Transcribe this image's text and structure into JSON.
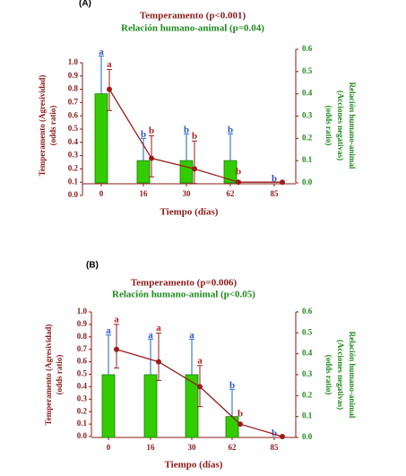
{
  "chart_data": [
    {
      "type": "bar_line",
      "panel_label": "(A)",
      "title": "Temperamento (p<0.001)",
      "subtitle": "Relación humano-animal (p=0.04)",
      "title_color": "#8b1a1a",
      "subtitle_color": "#1f8a1f",
      "xlabel": "Tiempo (días)",
      "ylabel": [
        "Temperamento (Agresividad)",
        "(odds ratio)"
      ],
      "y2label": [
        "Relación humano-animal",
        "(Acciones negativas)",
        "(odds ratio)"
      ],
      "categories": [
        "0",
        "16",
        "30",
        "62",
        "85"
      ],
      "ylim": [
        0,
        1
      ],
      "yticks": [
        {
          "value": 1,
          "label": "1.0"
        },
        0.9,
        0.8,
        0.7,
        0.6,
        0.5,
        0.4,
        0.3,
        0.2,
        0.1,
        {
          "value": 0,
          "label": "0.0"
        }
      ],
      "y2lim": [
        0,
        0.6
      ],
      "y2ticks": [
        0.6,
        0.5,
        0.4,
        0.3,
        0.2,
        0.1,
        {
          "value": 0,
          "label": "0.0"
        }
      ],
      "series": [
        {
          "mark": "bar",
          "axis": "y2",
          "color": "#33cc00",
          "values": [
            0.4,
            0.1,
            0.1,
            0.1,
            0
          ],
          "upper": [
            0.57,
            0.2,
            0.22,
            0.22,
            null
          ],
          "letters": [
            "a",
            "b",
            "b",
            "b",
            "b"
          ],
          "letter_color": "#3355cc"
        },
        {
          "mark": "line",
          "axis": "y",
          "color": "#9b1c1c",
          "values": [
            0.8,
            0.28,
            0.2,
            0.1,
            0.1
          ],
          "upper": [
            0.95,
            0.45,
            0.41,
            null,
            null
          ],
          "lower": [
            0.64,
            0.14,
            0.09,
            null,
            null
          ],
          "letters": [
            "a",
            "b",
            "b",
            "b",
            null
          ],
          "letter_color": "#b22222"
        }
      ]
    },
    {
      "type": "bar_line",
      "panel_label": "(B)",
      "title": "Temperamento  (p=0.006)",
      "subtitle": "Relación humano-animal (p<0.05)",
      "title_color": "#8b1a1a",
      "subtitle_color": "#1f8a1f",
      "xlabel": "Tiempo (días)",
      "ylabel": [
        "Temperamento (Agresividad)",
        "(odds ratio)"
      ],
      "y2label": [
        "Relación humano-animal",
        "(Acciones negativas)",
        "(odds ratio)"
      ],
      "categories": [
        "0",
        "16",
        "30",
        "62",
        "85"
      ],
      "ylim": [
        0,
        1
      ],
      "yticks": [
        {
          "value": 1,
          "label": "1.0"
        },
        0.9,
        0.8,
        0.7,
        0.6,
        0.5,
        0.4,
        0.3,
        0.2,
        0.1,
        {
          "value": 0,
          "label": "0.0"
        }
      ],
      "y2lim": [
        0,
        0.6
      ],
      "y2ticks": [
        0.6,
        0.5,
        0.4,
        0.3,
        0.2,
        0.1,
        {
          "value": 0,
          "label": "0.0"
        }
      ],
      "series": [
        {
          "mark": "bar",
          "axis": "y2",
          "color": "#33cc00",
          "values": [
            0.3,
            0.3,
            0.3,
            0.1,
            0
          ],
          "upper": [
            0.49,
            0.47,
            0.47,
            0.23,
            null
          ],
          "letters": [
            "a",
            "a",
            "a",
            "b",
            "b"
          ],
          "letter_color": "#3355cc"
        },
        {
          "mark": "line",
          "axis": "y",
          "color": "#9b1c1c",
          "values": [
            0.7,
            0.6,
            0.4,
            0.1,
            0
          ],
          "upper": [
            0.9,
            0.83,
            0.57,
            null,
            null
          ],
          "lower": [
            0.55,
            0.45,
            0.24,
            null,
            null
          ],
          "letters": [
            "a",
            "a",
            "a",
            "b",
            null
          ],
          "letter_color": "#b22222"
        }
      ]
    }
  ]
}
